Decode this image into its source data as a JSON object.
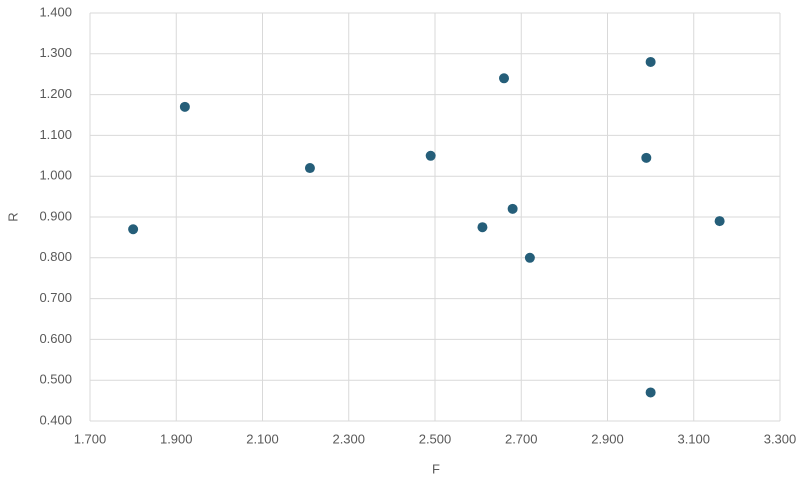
{
  "chart_data": {
    "type": "scatter",
    "x_label": "F",
    "y_label": "R",
    "color": "#255e79",
    "grid": true,
    "xlim": [
      1.7,
      3.3
    ],
    "xticks": [
      {
        "value": 1.7,
        "label": "1.700"
      },
      {
        "value": 1.9,
        "label": "1.900"
      },
      {
        "value": 2.1,
        "label": "2.100"
      },
      {
        "value": 2.3,
        "label": "2.300"
      },
      {
        "value": 2.5,
        "label": "2.500"
      },
      {
        "value": 2.7,
        "label": "2.700"
      },
      {
        "value": 2.9,
        "label": "2.900"
      },
      {
        "value": 3.1,
        "label": "3.100"
      },
      {
        "value": 3.3,
        "label": "3.300"
      }
    ],
    "ylim": [
      0.4,
      1.4
    ],
    "yticks": [
      {
        "value": 0.4,
        "label": "0.400"
      },
      {
        "value": 0.5,
        "label": "0.500"
      },
      {
        "value": 0.6,
        "label": "0.600"
      },
      {
        "value": 0.7,
        "label": "0.700"
      },
      {
        "value": 0.8,
        "label": "0.800"
      },
      {
        "value": 0.9,
        "label": "0.900"
      },
      {
        "value": 1.0,
        "label": "1.000"
      },
      {
        "value": 1.1,
        "label": "1.100"
      },
      {
        "value": 1.2,
        "label": "1.200"
      },
      {
        "value": 1.3,
        "label": "1.300"
      },
      {
        "value": 1.4,
        "label": "1.400"
      }
    ],
    "x": [
      1.8,
      1.92,
      2.21,
      2.49,
      2.66,
      2.61,
      2.68,
      2.72,
      3.0,
      2.99,
      3.16,
      3.0
    ],
    "values": [
      0.87,
      1.17,
      1.02,
      1.05,
      1.24,
      0.875,
      0.92,
      0.8,
      1.28,
      1.045,
      0.89,
      0.47
    ]
  }
}
